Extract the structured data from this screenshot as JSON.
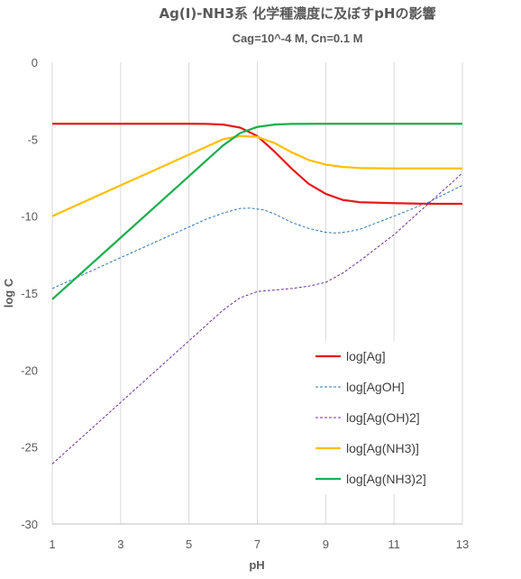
{
  "chart_data": {
    "type": "line",
    "title": "Ag(I)-NH3系 化学種濃度に及ぼすpHの影響",
    "subtitle": "Cag=10^-4 M, Cn=0.1 M",
    "xlabel": "pH",
    "ylabel": "log C",
    "xlim": [
      1,
      13
    ],
    "ylim": [
      -30,
      0
    ],
    "xticks": [
      "1",
      "3",
      "5",
      "7",
      "9",
      "11",
      "13"
    ],
    "yticks": [
      "0",
      "-5",
      "-10",
      "-15",
      "-20",
      "-25",
      "-30"
    ],
    "grid": "vertical",
    "legend_position": "right-middle",
    "series": [
      {
        "name": "log[Ag]",
        "color": "#e8191b",
        "style": "solid",
        "points": [
          [
            1,
            -4.0
          ],
          [
            2,
            -4.0
          ],
          [
            3,
            -4.0
          ],
          [
            4,
            -4.0
          ],
          [
            5,
            -4.0
          ],
          [
            5.5,
            -4.01
          ],
          [
            6,
            -4.05
          ],
          [
            6.5,
            -4.25
          ],
          [
            7,
            -4.8
          ],
          [
            7.5,
            -5.8
          ],
          [
            8,
            -6.9
          ],
          [
            8.5,
            -7.9
          ],
          [
            9,
            -8.55
          ],
          [
            9.5,
            -8.95
          ],
          [
            10,
            -9.1
          ],
          [
            11,
            -9.15
          ],
          [
            12,
            -9.2
          ],
          [
            13,
            -9.2
          ]
        ]
      },
      {
        "name": "log[AgOH]",
        "color": "#2e75b6",
        "style": "dashed",
        "points": [
          [
            1,
            -14.7
          ],
          [
            2,
            -13.7
          ],
          [
            3,
            -12.7
          ],
          [
            4,
            -11.7
          ],
          [
            5,
            -10.7
          ],
          [
            5.5,
            -10.2
          ],
          [
            6,
            -9.8
          ],
          [
            6.5,
            -9.5
          ],
          [
            6.8,
            -9.48
          ],
          [
            7.2,
            -9.6
          ],
          [
            7.5,
            -9.85
          ],
          [
            8,
            -10.4
          ],
          [
            8.5,
            -10.8
          ],
          [
            9,
            -11.05
          ],
          [
            9.3,
            -11.1
          ],
          [
            9.7,
            -11.0
          ],
          [
            10,
            -10.85
          ],
          [
            11,
            -10.0
          ],
          [
            12,
            -9.1
          ],
          [
            13,
            -8.0
          ]
        ]
      },
      {
        "name": "log[Ag(OH)2]",
        "color": "#7030a0",
        "style": "dashed",
        "points": [
          [
            1,
            -26.1
          ],
          [
            2,
            -24.1
          ],
          [
            3,
            -22.1
          ],
          [
            4,
            -20.1
          ],
          [
            5,
            -18.1
          ],
          [
            5.5,
            -17.1
          ],
          [
            6,
            -16.1
          ],
          [
            6.5,
            -15.3
          ],
          [
            7,
            -14.9
          ],
          [
            7.5,
            -14.8
          ],
          [
            8,
            -14.7
          ],
          [
            8.5,
            -14.55
          ],
          [
            9,
            -14.3
          ],
          [
            9.5,
            -13.7
          ],
          [
            10,
            -12.9
          ],
          [
            11,
            -11.2
          ],
          [
            12,
            -9.2
          ],
          [
            13,
            -7.2
          ]
        ]
      },
      {
        "name": "log[Ag(NH3)]",
        "color": "#ffc000",
        "style": "solid",
        "points": [
          [
            1,
            -10.0
          ],
          [
            2,
            -9.0
          ],
          [
            3,
            -8.0
          ],
          [
            4,
            -7.0
          ],
          [
            5,
            -6.0
          ],
          [
            5.5,
            -5.5
          ],
          [
            6,
            -5.0
          ],
          [
            6.5,
            -4.8
          ],
          [
            7,
            -4.85
          ],
          [
            7.5,
            -5.25
          ],
          [
            8,
            -5.85
          ],
          [
            8.5,
            -6.35
          ],
          [
            9,
            -6.65
          ],
          [
            9.5,
            -6.8
          ],
          [
            10,
            -6.88
          ],
          [
            11,
            -6.9
          ],
          [
            12,
            -6.9
          ],
          [
            13,
            -6.9
          ]
        ]
      },
      {
        "name": "log[Ag(NH3)2]",
        "color": "#1aae4e",
        "style": "solid",
        "points": [
          [
            1,
            -15.4
          ],
          [
            2,
            -13.4
          ],
          [
            3,
            -11.4
          ],
          [
            4,
            -9.4
          ],
          [
            5,
            -7.4
          ],
          [
            5.5,
            -6.4
          ],
          [
            6,
            -5.4
          ],
          [
            6.5,
            -4.6
          ],
          [
            7,
            -4.2
          ],
          [
            7.5,
            -4.05
          ],
          [
            8,
            -4.01
          ],
          [
            9,
            -4.0
          ],
          [
            10,
            -4.0
          ],
          [
            11,
            -4.0
          ],
          [
            12,
            -4.0
          ],
          [
            13,
            -4.0
          ]
        ]
      }
    ]
  }
}
